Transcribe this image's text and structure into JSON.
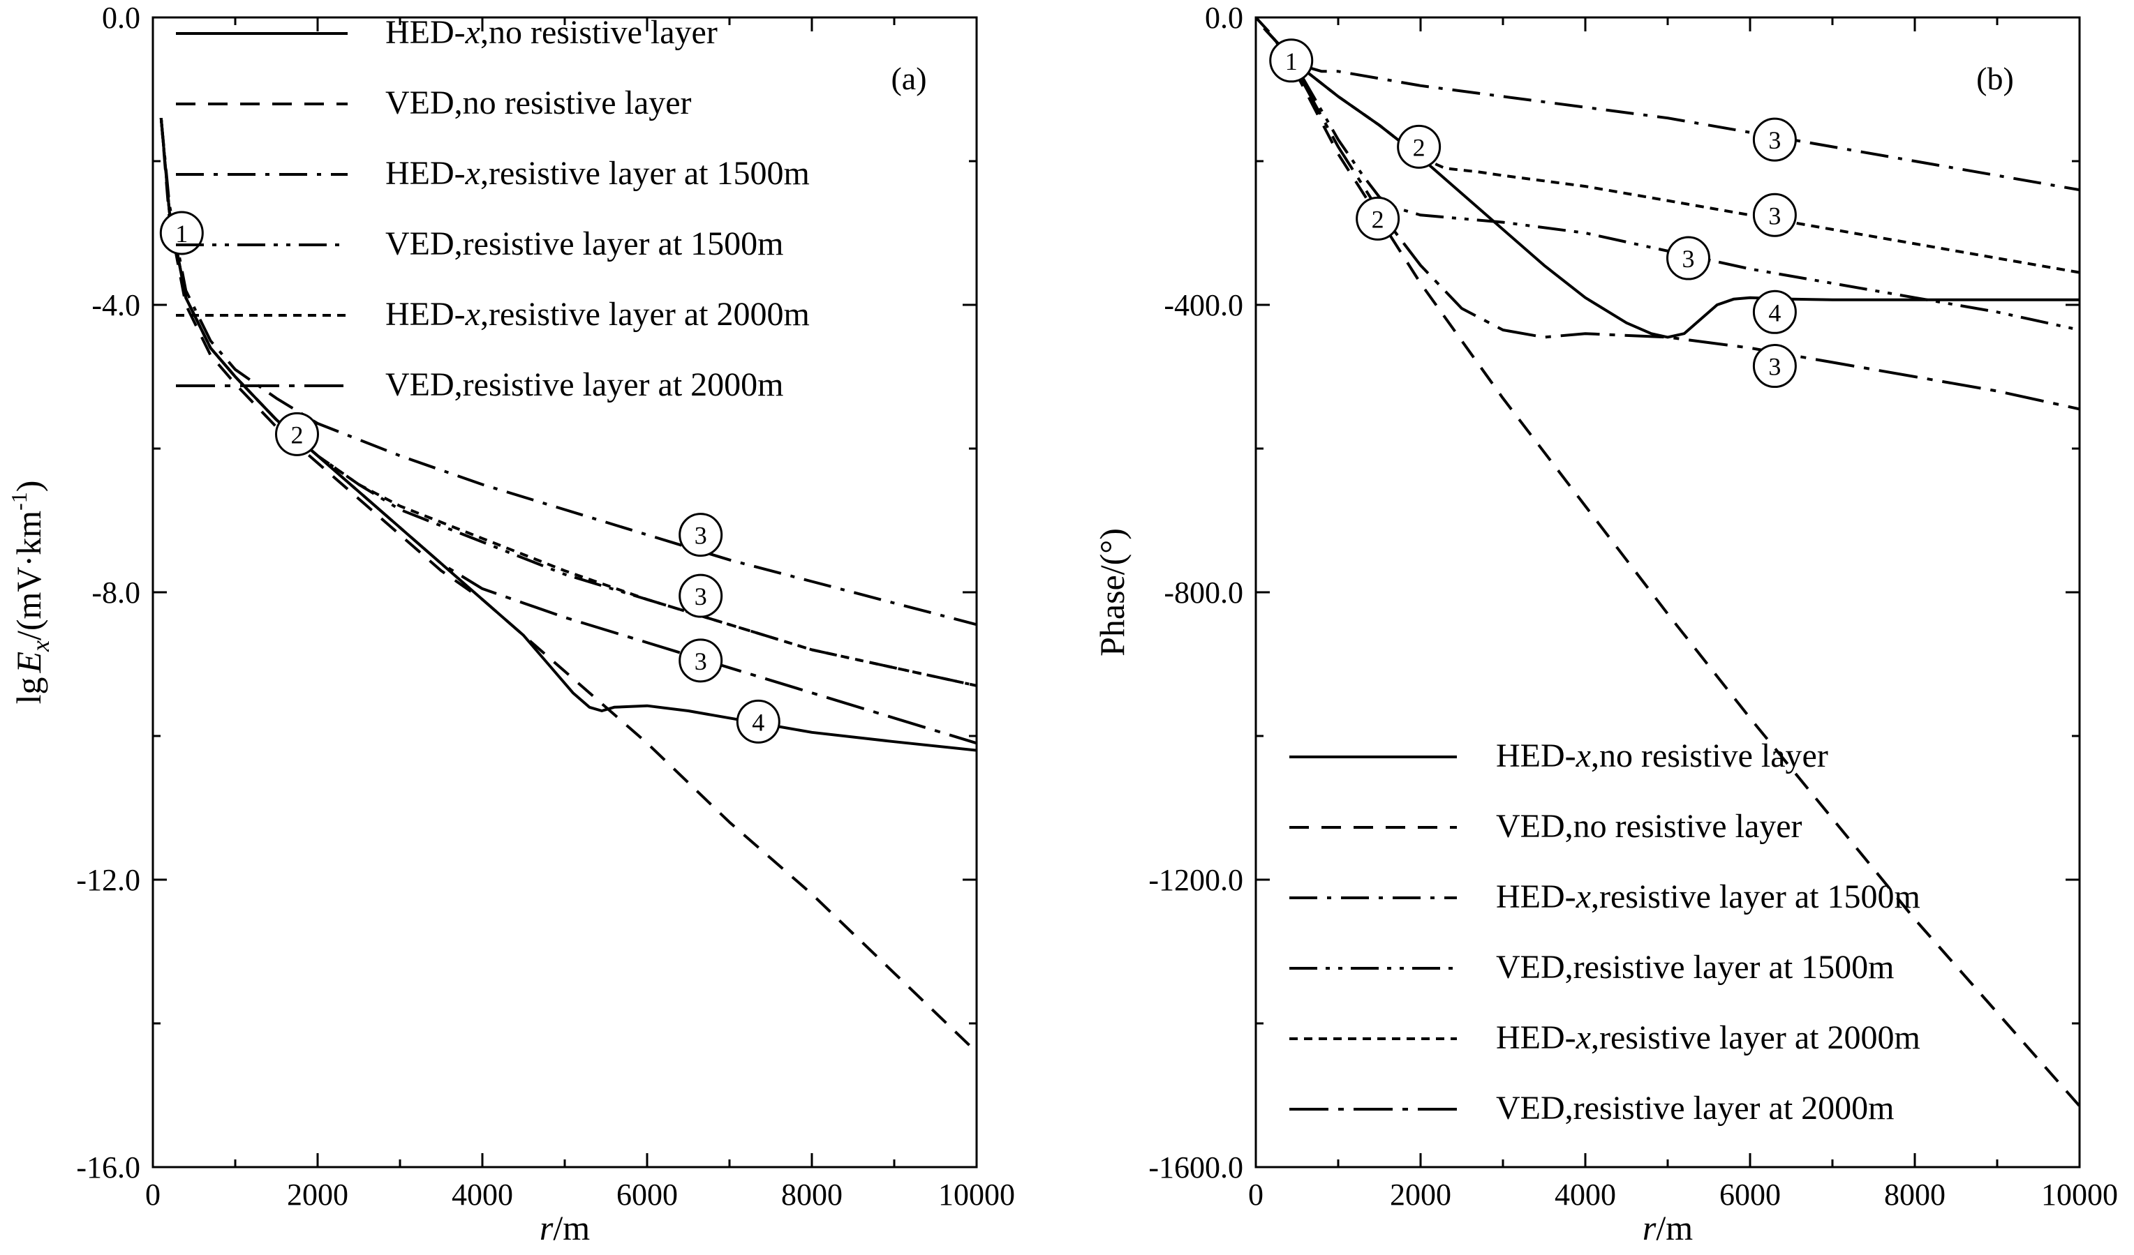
{
  "chart_data": [
    {
      "panel": "(a)",
      "type": "line",
      "ylabel": "lgEx/(mV·km-1)",
      "ylabel_parts": {
        "prefix": "lg",
        "E": "E",
        "sub": "x",
        "mid": "/(mV·km",
        "sup": "-1",
        "end": ")"
      },
      "xlabel": "r/m",
      "xlabel_parts": {
        "r": "r",
        "unit": "/m"
      },
      "xlim": [
        0,
        10000
      ],
      "ylim": [
        -16,
        0
      ],
      "xticks": [
        0,
        2000,
        4000,
        6000,
        8000,
        10000
      ],
      "xtick_labels": [
        "0",
        "2000",
        "4000",
        "6000",
        "8000",
        "10000"
      ],
      "yticks": [
        0,
        -4,
        -8,
        -12,
        -16
      ],
      "ytick_labels": [
        "0.0",
        "-4.0",
        "-8.0",
        "-12.0",
        "-16.0"
      ],
      "legend_position": "top",
      "series": [
        {
          "name": "HED-x,no resistive layer",
          "name_parts": [
            "HED-",
            "x",
            ",no resistive layer"
          ],
          "dash": "solid",
          "x": [
            100,
            200,
            400,
            700,
            1000,
            1500,
            2000,
            2500,
            3000,
            3500,
            4000,
            4500,
            4800,
            5100,
            5300,
            5450,
            5600,
            6000,
            6500,
            7000,
            7500,
            8000,
            9000,
            10000
          ],
          "y": [
            -1.4,
            -2.7,
            -3.9,
            -4.6,
            -5.0,
            -5.6,
            -6.1,
            -6.6,
            -7.1,
            -7.6,
            -8.1,
            -8.6,
            -9.0,
            -9.4,
            -9.6,
            -9.65,
            -9.6,
            -9.58,
            -9.65,
            -9.75,
            -9.85,
            -9.95,
            -10.08,
            -10.2
          ]
        },
        {
          "name": "VED,no resistive layer",
          "name_parts": [
            "VED,no resistive layer"
          ],
          "dash": "dashed",
          "x": [
            100,
            200,
            400,
            700,
            1000,
            1500,
            2000,
            2500,
            3000,
            3500,
            4000,
            5000,
            6000,
            7000,
            8000,
            9000,
            10000
          ],
          "y": [
            -1.4,
            -2.8,
            -4.0,
            -4.7,
            -5.1,
            -5.7,
            -6.2,
            -6.7,
            -7.2,
            -7.7,
            -8.1,
            -9.1,
            -10.1,
            -11.2,
            -12.2,
            -13.3,
            -14.4
          ]
        },
        {
          "name": "HED-x,resistive layer at 1500m",
          "name_parts": [
            "HED-",
            "x",
            ",resistive layer at 1500m"
          ],
          "dash": "dashdot",
          "x": [
            100,
            200,
            400,
            700,
            1000,
            1500,
            2000,
            3000,
            4000,
            5000,
            6000,
            7000,
            8000,
            9000,
            10000
          ],
          "y": [
            -1.4,
            -2.6,
            -3.8,
            -4.5,
            -4.9,
            -5.3,
            -5.65,
            -6.1,
            -6.5,
            -6.85,
            -7.2,
            -7.55,
            -7.85,
            -8.15,
            -8.45
          ]
        },
        {
          "name": "VED,resistive layer at 1500m",
          "name_parts": [
            "VED,resistive layer at 1500m"
          ],
          "dash": "dashdotdot",
          "x": [
            100,
            200,
            400,
            700,
            1000,
            1500,
            2000,
            2500,
            3000,
            4000,
            5000,
            6000,
            7000,
            8000,
            9000,
            10000
          ],
          "y": [
            -1.4,
            -2.7,
            -3.9,
            -4.6,
            -5.0,
            -5.6,
            -6.1,
            -6.5,
            -6.85,
            -7.3,
            -7.75,
            -8.1,
            -8.45,
            -8.8,
            -9.05,
            -9.3
          ]
        },
        {
          "name": "HED-x,resistive layer at 2000m",
          "name_parts": [
            "HED-",
            "x",
            ",resistive layer at 2000m"
          ],
          "dash": "shortdash",
          "x": [
            100,
            200,
            400,
            700,
            1000,
            1500,
            2000,
            2500,
            3000,
            4000,
            5000,
            6000,
            7000,
            8000,
            9000,
            10000
          ],
          "y": [
            -1.4,
            -2.7,
            -3.9,
            -4.6,
            -5.0,
            -5.6,
            -6.1,
            -6.5,
            -6.8,
            -7.25,
            -7.7,
            -8.1,
            -8.45,
            -8.8,
            -9.05,
            -9.3
          ]
        },
        {
          "name": "VED,resistive layer at 2000m",
          "name_parts": [
            "VED,resistive layer at 2000m"
          ],
          "dash": "longdashdot",
          "x": [
            100,
            200,
            400,
            700,
            1000,
            1500,
            2000,
            2500,
            3000,
            3500,
            4000,
            4500,
            5000,
            6000,
            7000,
            8000,
            9000,
            10000
          ],
          "y": [
            -1.4,
            -2.7,
            -3.9,
            -4.6,
            -5.0,
            -5.6,
            -6.1,
            -6.6,
            -7.1,
            -7.6,
            -7.95,
            -8.15,
            -8.35,
            -8.7,
            -9.05,
            -9.4,
            -9.75,
            -10.1
          ]
        }
      ],
      "markers": [
        {
          "label": "1",
          "x": 350,
          "y": -3.0
        },
        {
          "label": "2",
          "x": 1750,
          "y": -5.8
        },
        {
          "label": "3",
          "x": 6650,
          "y": -7.2
        },
        {
          "label": "3",
          "x": 6650,
          "y": -8.05
        },
        {
          "label": "3",
          "x": 6650,
          "y": -8.95
        },
        {
          "label": "4",
          "x": 7350,
          "y": -9.8
        }
      ]
    },
    {
      "panel": "(b)",
      "type": "line",
      "ylabel": "Phase/(°)",
      "xlabel": "r/m",
      "xlabel_parts": {
        "r": "r",
        "unit": "/m"
      },
      "xlim": [
        0,
        10000
      ],
      "ylim": [
        -1600,
        0
      ],
      "xticks": [
        0,
        2000,
        4000,
        6000,
        8000,
        10000
      ],
      "xtick_labels": [
        "0",
        "2000",
        "4000",
        "6000",
        "8000",
        "10000"
      ],
      "yticks": [
        0,
        -400,
        -800,
        -1200,
        -1600
      ],
      "ytick_labels": [
        "0.0",
        "-400.0",
        "-800.0",
        "-1200.0",
        "-1600.0"
      ],
      "legend_position": "bottom",
      "series": [
        {
          "name": "HED-x,no resistive layer",
          "name_parts": [
            "HED-",
            "x",
            ",no resistive layer"
          ],
          "dash": "solid",
          "x": [
            100,
            300,
            500,
            1000,
            1500,
            2000,
            2500,
            3000,
            3500,
            4000,
            4500,
            4800,
            5000,
            5200,
            5400,
            5600,
            5800,
            6000,
            6500,
            7000,
            8000,
            9000,
            10000
          ],
          "y": [
            -15,
            -40,
            -65,
            -110,
            -150,
            -195,
            -245,
            -295,
            -345,
            -390,
            -425,
            -440,
            -445,
            -440,
            -420,
            -400,
            -392,
            -390,
            -392,
            -393,
            -393,
            -393,
            -393
          ]
        },
        {
          "name": "VED,no resistive layer",
          "name_parts": [
            "VED,no resistive layer"
          ],
          "dash": "dashed",
          "x": [
            0,
            200,
            500,
            1000,
            1500,
            2000,
            3000,
            4000,
            5000,
            6000,
            7000,
            8000,
            9000,
            10000
          ],
          "y": [
            0,
            -25,
            -80,
            -190,
            -280,
            -370,
            -530,
            -680,
            -830,
            -975,
            -1115,
            -1255,
            -1385,
            -1515
          ]
        },
        {
          "name": "HED-x,resistive layer at 1500m",
          "name_parts": [
            "HED-",
            "x",
            ",resistive layer at 1500m"
          ],
          "dash": "dashdot",
          "x": [
            100,
            300,
            500,
            800,
            1000,
            1500,
            2000,
            3000,
            4000,
            5000,
            6000,
            7000,
            8000,
            9000,
            10000
          ],
          "y": [
            -15,
            -40,
            -65,
            -75,
            -75,
            -85,
            -95,
            -110,
            -125,
            -140,
            -160,
            -180,
            -200,
            -220,
            -240
          ]
        },
        {
          "name": "VED,resistive layer at 1500m",
          "name_parts": [
            "VED,resistive layer at 1500m"
          ],
          "dash": "dashdotdot",
          "x": [
            100,
            300,
            500,
            700,
            1000,
            1300,
            1500,
            1700,
            2000,
            3000,
            4000,
            5000,
            6000,
            7000,
            8000,
            9000,
            10000
          ],
          "y": [
            -15,
            -40,
            -70,
            -110,
            -170,
            -220,
            -250,
            -265,
            -275,
            -285,
            -300,
            -325,
            -350,
            -370,
            -390,
            -410,
            -435
          ]
        },
        {
          "name": "HED-x,resistive layer at 2000m",
          "name_parts": [
            "HED-",
            "x",
            ",resistive layer at 2000m"
          ],
          "dash": "shortdash",
          "x": [
            100,
            300,
            500,
            1000,
            1500,
            2000,
            2300,
            2700,
            3000,
            4000,
            5000,
            6000,
            7000,
            8000,
            9000,
            10000
          ],
          "y": [
            -15,
            -40,
            -65,
            -110,
            -150,
            -195,
            -210,
            -215,
            -220,
            -235,
            -255,
            -275,
            -295,
            -315,
            -335,
            -355
          ]
        },
        {
          "name": "VED,resistive layer at 2000m",
          "name_parts": [
            "VED,resistive layer at 2000m"
          ],
          "dash": "longdashdot",
          "x": [
            100,
            300,
            500,
            1000,
            1500,
            2000,
            2500,
            3000,
            3500,
            4000,
            5000,
            6000,
            7000,
            8000,
            9000,
            10000
          ],
          "y": [
            -15,
            -40,
            -75,
            -180,
            -270,
            -345,
            -405,
            -435,
            -445,
            -440,
            -445,
            -460,
            -480,
            -500,
            -520,
            -545
          ]
        }
      ],
      "markers": [
        {
          "label": "1",
          "x": 430,
          "y": -60
        },
        {
          "label": "2",
          "x": 1980,
          "y": -180
        },
        {
          "label": "2",
          "x": 1480,
          "y": -280
        },
        {
          "label": "3",
          "x": 6300,
          "y": -170
        },
        {
          "label": "3",
          "x": 6300,
          "y": -275
        },
        {
          "label": "3",
          "x": 5250,
          "y": -335
        },
        {
          "label": "4",
          "x": 6300,
          "y": -410
        },
        {
          "label": "3",
          "x": 6300,
          "y": -485
        }
      ]
    }
  ]
}
